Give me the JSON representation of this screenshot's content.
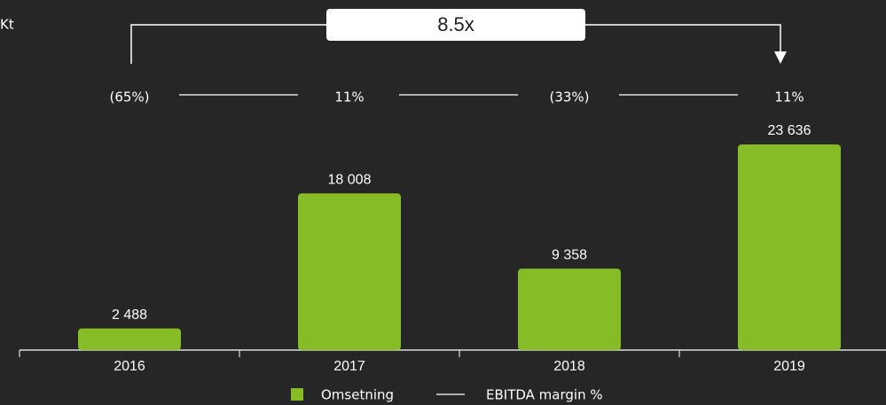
{
  "chart_data": {
    "type": "bar",
    "unit_label": "Kt",
    "annotation": "8.5x",
    "categories": [
      "2016",
      "2017",
      "2018",
      "2019"
    ],
    "series": [
      {
        "name": "Omsetning",
        "color": "#86bc25",
        "values": [
          2488,
          18008,
          9358,
          23636
        ],
        "value_labels": [
          "2 488",
          "18 008",
          "9 358",
          "23 636"
        ]
      },
      {
        "name": "EBITDA margin %",
        "color": "#ffffff",
        "values": [
          -65,
          11,
          -33,
          11
        ],
        "value_labels": [
          "(65%)",
          "11%",
          "(33%)",
          "11%"
        ]
      }
    ]
  }
}
